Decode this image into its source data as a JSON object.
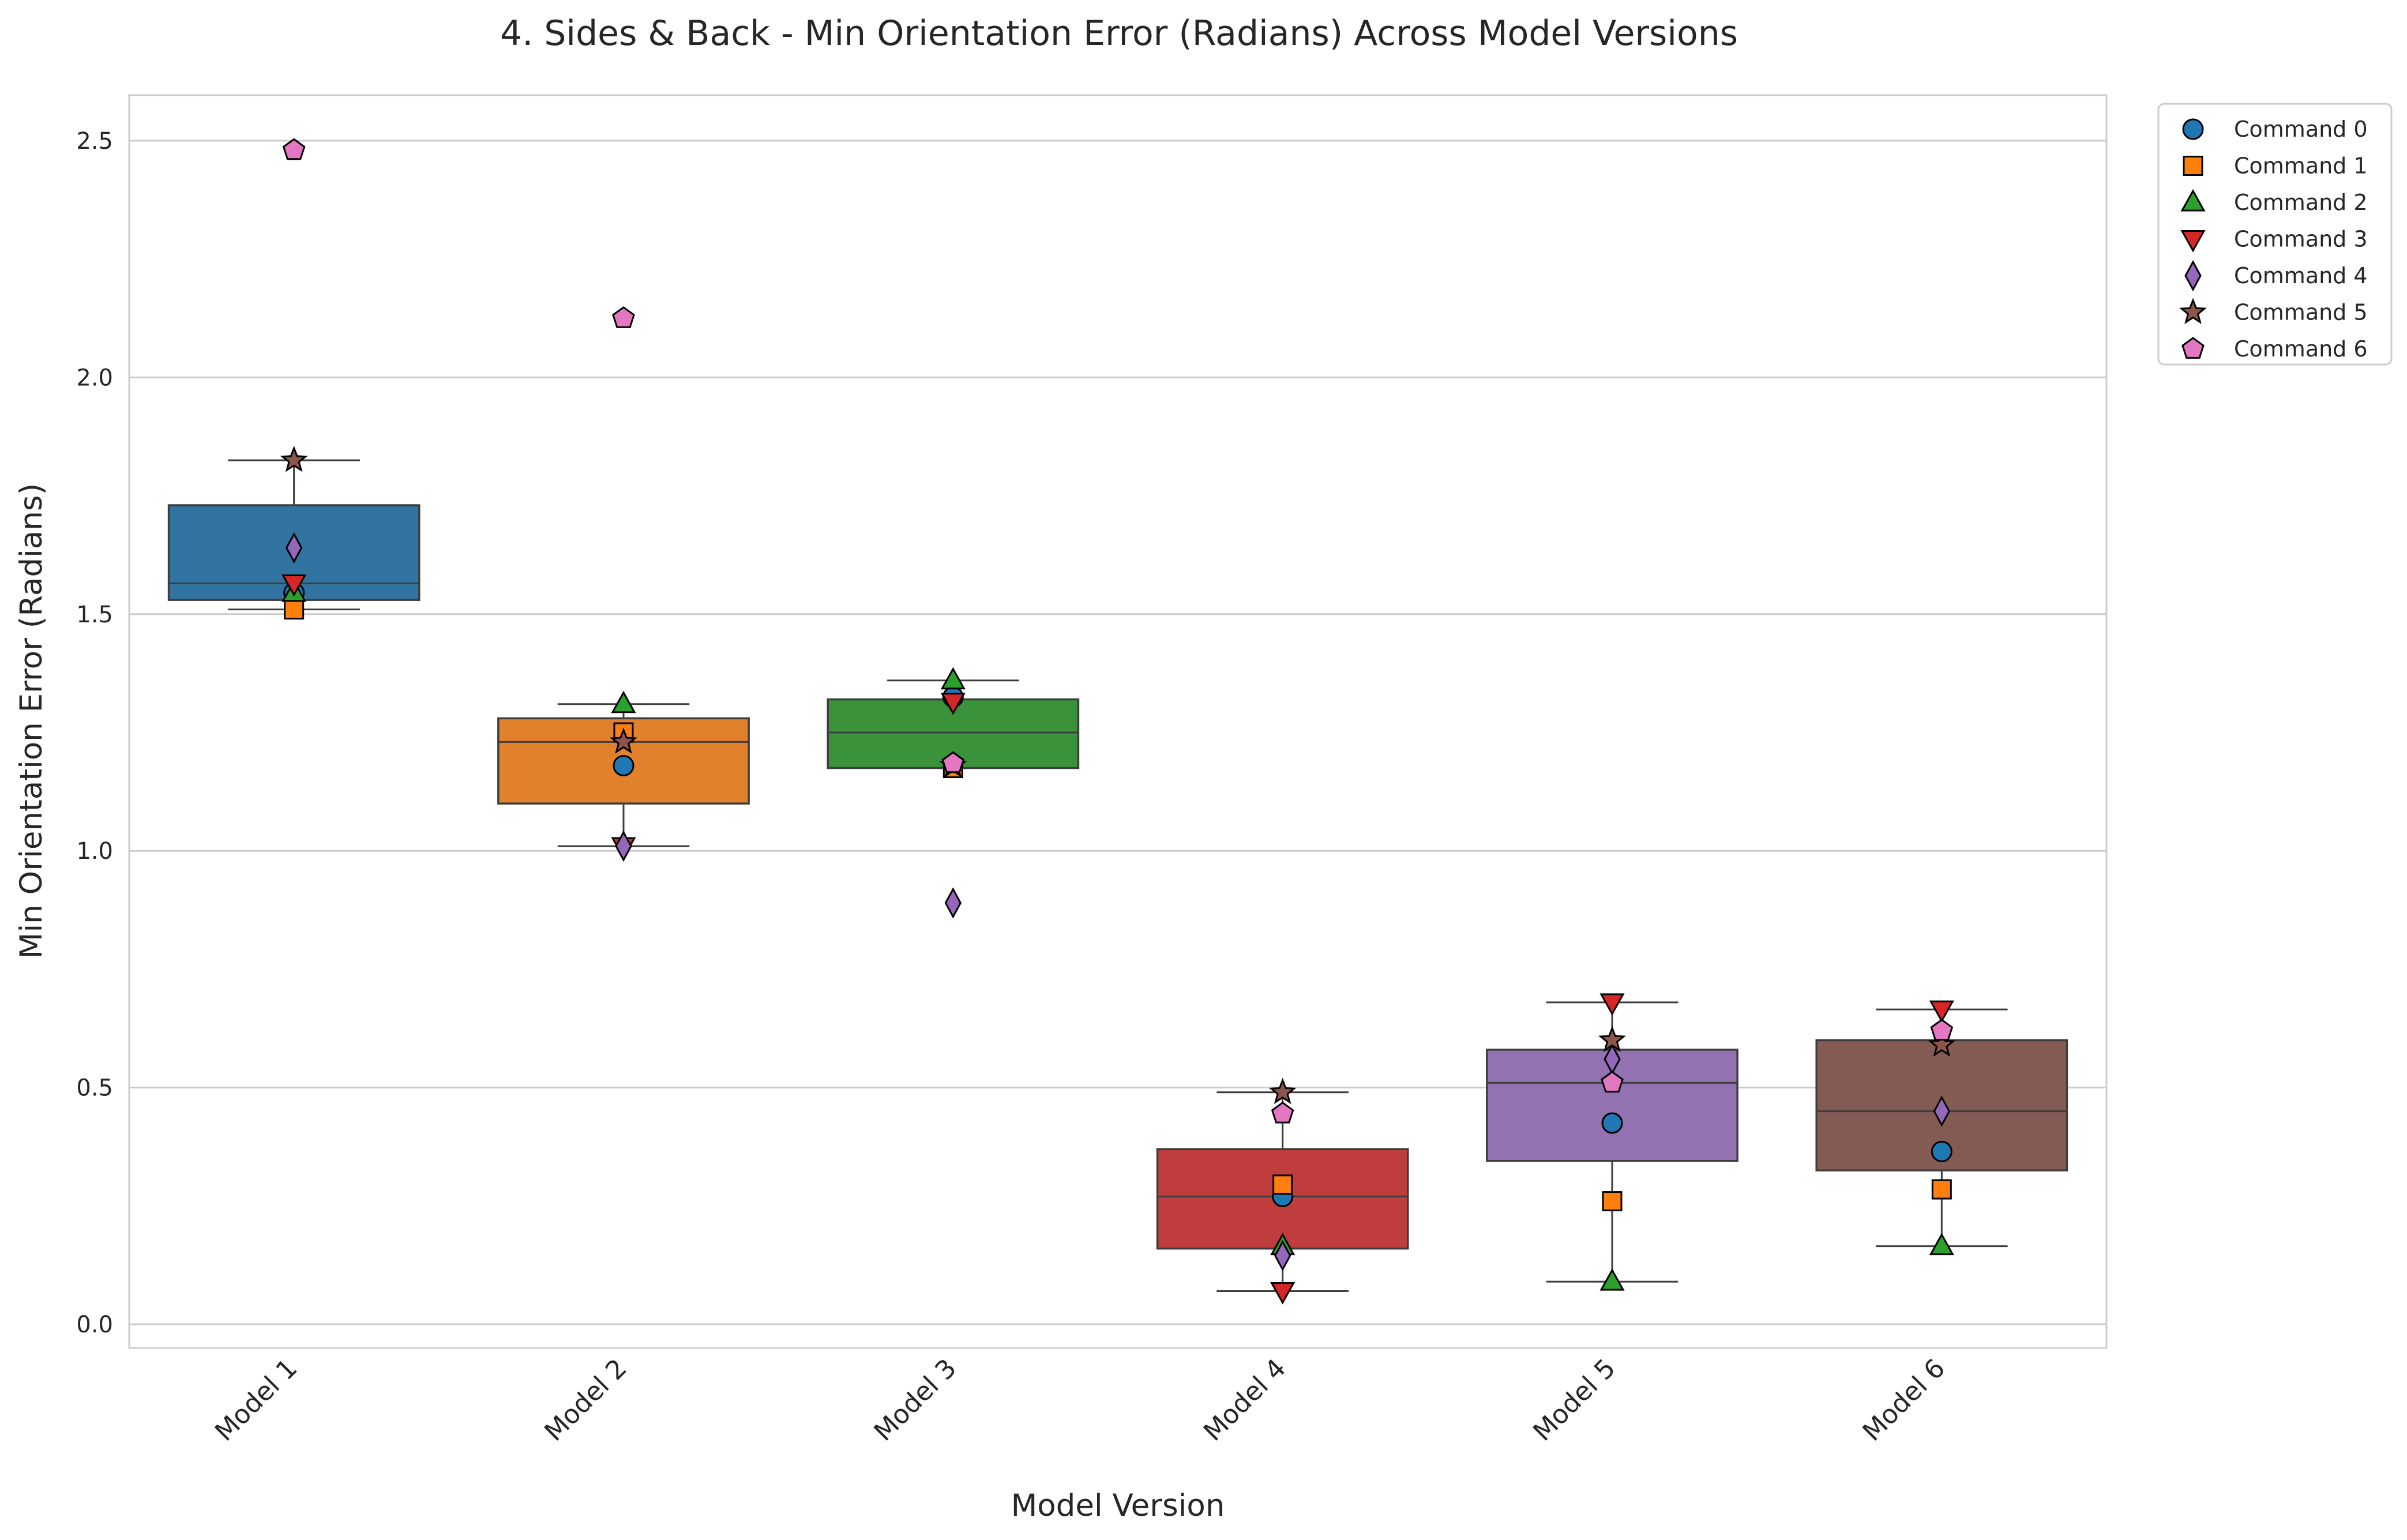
{
  "chart_data": {
    "type": "box",
    "title": "4. Sides & Back - Min Orientation Error (Radians) Across Model Versions",
    "xlabel": "Model Version",
    "ylabel": "Min Orientation Error (Radians)",
    "ylim": [
      -0.05,
      2.6
    ],
    "yticks": [
      "0.0",
      "0.5",
      "1.0",
      "1.5",
      "2.0",
      "2.5"
    ],
    "ytick_values": [
      0,
      0.5,
      1.0,
      1.5,
      2.0,
      2.5
    ],
    "grid": "horizontal",
    "legend_position": "outside-top-right",
    "categories": [
      "Model 1",
      "Model 2",
      "Model 3",
      "Model 4",
      "Model 5",
      "Model 6"
    ],
    "box_colors": [
      "#3274a1",
      "#e1812c",
      "#3a923a",
      "#c03d3e",
      "#9372b2",
      "#845b53"
    ],
    "boxes": [
      {
        "whisker_low": 1.51,
        "q1": 1.53,
        "median": 1.565,
        "q3": 1.73,
        "whisker_high": 1.825
      },
      {
        "whisker_low": 1.01,
        "q1": 1.1,
        "median": 1.23,
        "q3": 1.28,
        "whisker_high": 1.31
      },
      {
        "whisker_low": 1.175,
        "q1": 1.175,
        "median": 1.25,
        "q3": 1.32,
        "whisker_high": 1.36
      },
      {
        "whisker_low": 0.07,
        "q1": 0.16,
        "median": 0.27,
        "q3": 0.37,
        "whisker_high": 0.49
      },
      {
        "whisker_low": 0.09,
        "q1": 0.345,
        "median": 0.51,
        "q3": 0.58,
        "whisker_high": 0.68
      },
      {
        "whisker_low": 0.165,
        "q1": 0.325,
        "median": 0.45,
        "q3": 0.6,
        "whisker_high": 0.665
      }
    ],
    "series": [
      {
        "name": "Command 0",
        "marker": "circle",
        "color": "#1f77b4",
        "values": [
          1.545,
          1.18,
          1.325,
          0.27,
          0.425,
          0.365
        ]
      },
      {
        "name": "Command 1",
        "marker": "square",
        "color": "#ff7f0e",
        "values": [
          1.51,
          1.25,
          1.175,
          0.295,
          0.26,
          0.285
        ]
      },
      {
        "name": "Command 2",
        "marker": "triangle-up",
        "color": "#2ca02c",
        "values": [
          1.545,
          1.31,
          1.36,
          0.165,
          0.09,
          0.165
        ]
      },
      {
        "name": "Command 3",
        "marker": "triangle-down",
        "color": "#d62728",
        "values": [
          1.565,
          1.01,
          1.315,
          0.07,
          0.68,
          0.665
        ]
      },
      {
        "name": "Command 4",
        "marker": "diamond",
        "color": "#9467bd",
        "values": [
          1.64,
          1.01,
          0.89,
          0.145,
          0.56,
          0.45
        ]
      },
      {
        "name": "Command 5",
        "marker": "star",
        "color": "#8c564b",
        "values": [
          1.825,
          1.23,
          1.18,
          0.49,
          0.6,
          0.59
        ]
      },
      {
        "name": "Command 6",
        "marker": "pentagon",
        "color": "#e377c2",
        "values": [
          2.48,
          2.125,
          1.185,
          0.445,
          0.51,
          0.62
        ]
      }
    ]
  }
}
